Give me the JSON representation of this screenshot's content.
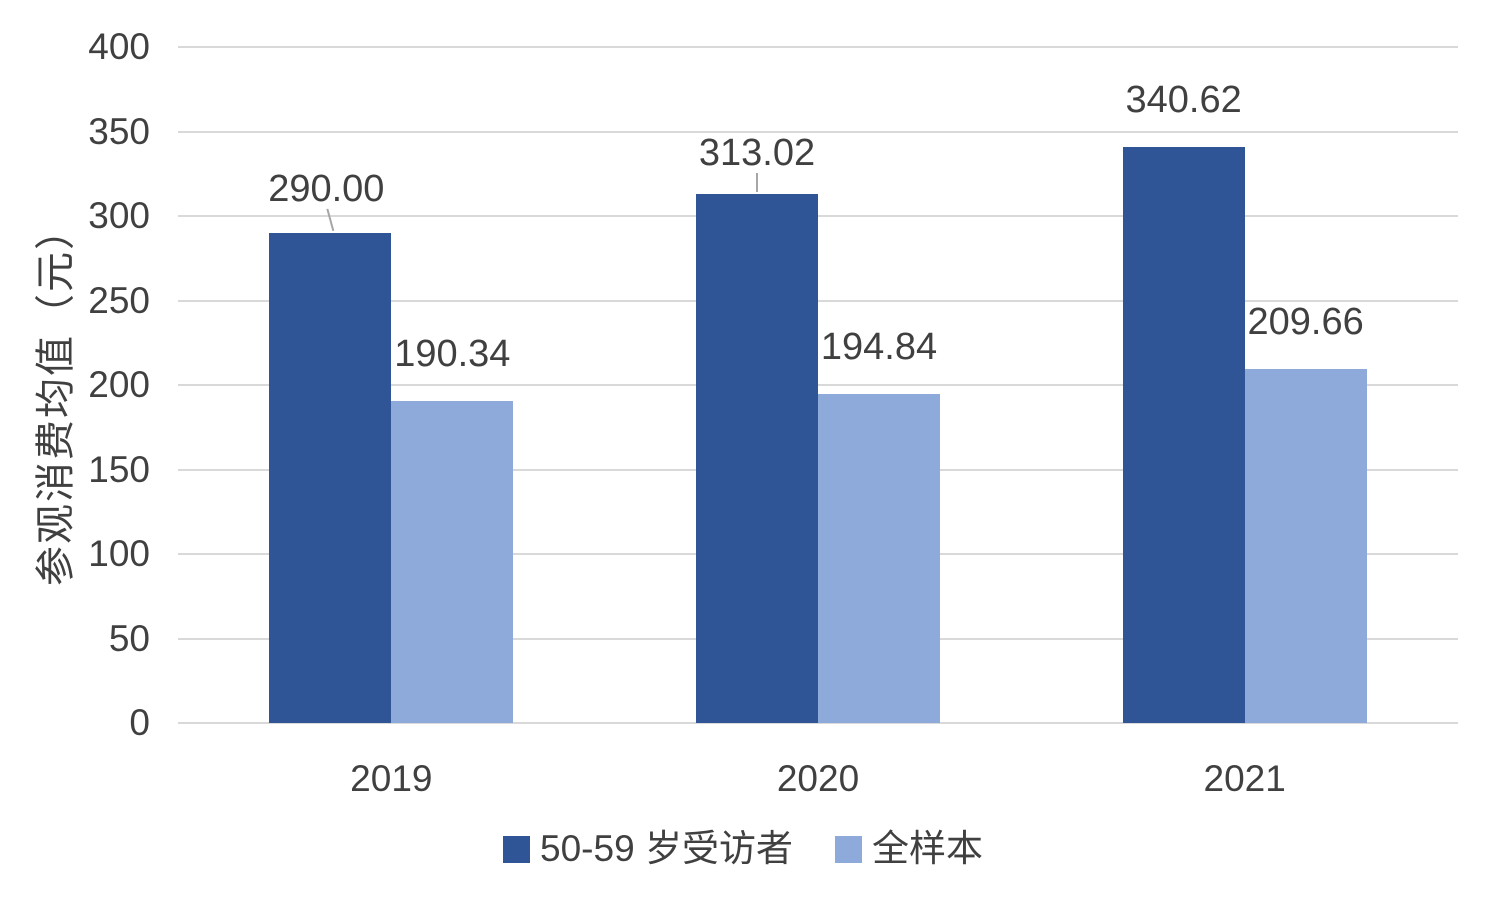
{
  "chart_data": {
    "type": "bar",
    "categories": [
      "2019",
      "2020",
      "2021"
    ],
    "series": [
      {
        "name": "50-59 岁受访者",
        "color": "#2F5597",
        "values": [
          290.0,
          313.02,
          340.62
        ],
        "labels": [
          "290.00",
          "313.02",
          "340.62"
        ]
      },
      {
        "name": "全样本",
        "color": "#8EAADB",
        "values": [
          190.34,
          194.84,
          209.66
        ],
        "labels": [
          "190.34",
          "194.84",
          "209.66"
        ]
      }
    ],
    "title": "",
    "xlabel": "",
    "ylabel": "参观消费均值（元）",
    "ylim": [
      0,
      400
    ],
    "ytick_step": 50,
    "y_ticks": [
      "0",
      "50",
      "100",
      "150",
      "200",
      "250",
      "300",
      "350",
      "400"
    ],
    "grid": "horizontal-only",
    "legend_position": "bottom-center",
    "callouts": [
      {
        "series": 0,
        "category_index": 0,
        "leader": "diagonal",
        "label_dx": -4,
        "label_gap": 25
      },
      {
        "series": 0,
        "category_index": 1,
        "leader": "vertical",
        "label_dx": 0,
        "label_gap": 22
      }
    ],
    "colors": {
      "gridline": "#D9D9D9",
      "text": "#404040",
      "leader_line": "#A6A6A6",
      "background": "#FFFFFF"
    }
  }
}
